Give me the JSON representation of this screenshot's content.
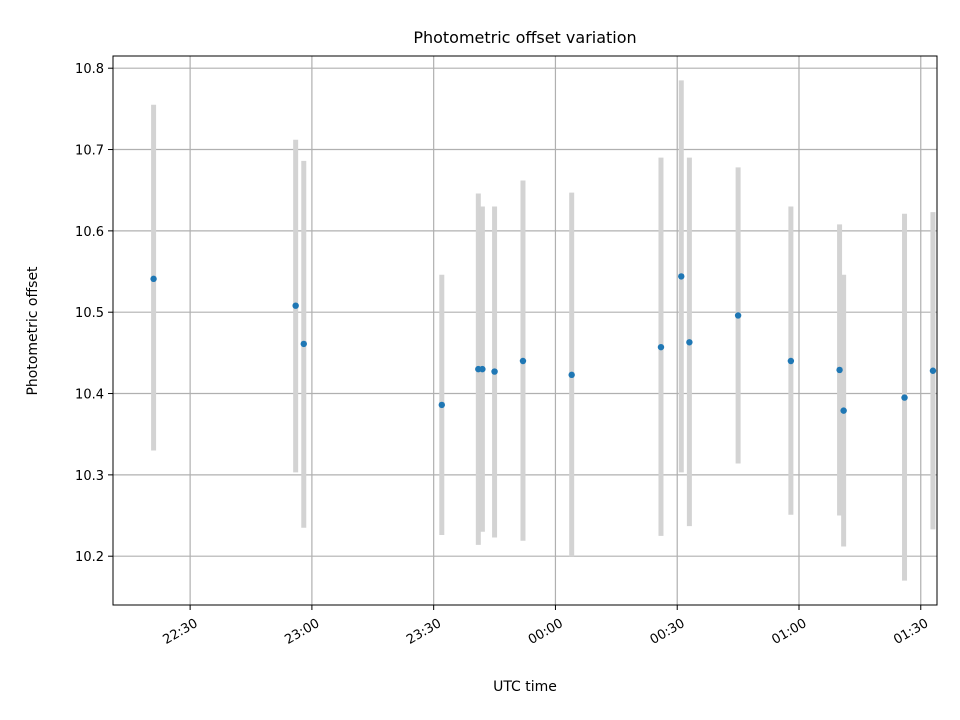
{
  "chart_data": {
    "type": "scatter",
    "title": "Photometric offset variation",
    "xlabel": "UTC time",
    "ylabel": "Photometric offset",
    "x_axis_kind": "time",
    "xlim": [
      "22:11",
      "01:34"
    ],
    "ylim": [
      10.14,
      10.815
    ],
    "x_ticks": [
      "22:30",
      "23:00",
      "23:30",
      "00:00",
      "00:30",
      "01:00",
      "01:30"
    ],
    "y_ticks": [
      10.2,
      10.3,
      10.4,
      10.5,
      10.6,
      10.7,
      10.8
    ],
    "grid": true,
    "marker_color": "#1f77b4",
    "errorbar_color": "#d3d3d3",
    "points": [
      {
        "time": "22:21",
        "y": 10.541,
        "y_low": 10.33,
        "y_high": 10.755
      },
      {
        "time": "22:56",
        "y": 10.508,
        "y_low": 10.303,
        "y_high": 10.712
      },
      {
        "time": "22:58",
        "y": 10.461,
        "y_low": 10.235,
        "y_high": 10.686
      },
      {
        "time": "23:32",
        "y": 10.386,
        "y_low": 10.226,
        "y_high": 10.546
      },
      {
        "time": "23:41",
        "y": 10.43,
        "y_low": 10.214,
        "y_high": 10.646
      },
      {
        "time": "23:42",
        "y": 10.43,
        "y_low": 10.23,
        "y_high": 10.63
      },
      {
        "time": "23:45",
        "y": 10.427,
        "y_low": 10.223,
        "y_high": 10.63
      },
      {
        "time": "23:52",
        "y": 10.44,
        "y_low": 10.219,
        "y_high": 10.662
      },
      {
        "time": "00:04",
        "y": 10.423,
        "y_low": 10.2,
        "y_high": 10.647
      },
      {
        "time": "00:26",
        "y": 10.457,
        "y_low": 10.225,
        "y_high": 10.69
      },
      {
        "time": "00:31",
        "y": 10.544,
        "y_low": 10.303,
        "y_high": 10.785
      },
      {
        "time": "00:33",
        "y": 10.463,
        "y_low": 10.237,
        "y_high": 10.69
      },
      {
        "time": "00:45",
        "y": 10.496,
        "y_low": 10.314,
        "y_high": 10.678
      },
      {
        "time": "00:58",
        "y": 10.44,
        "y_low": 10.251,
        "y_high": 10.63
      },
      {
        "time": "01:10",
        "y": 10.429,
        "y_low": 10.25,
        "y_high": 10.608
      },
      {
        "time": "01:11",
        "y": 10.379,
        "y_low": 10.212,
        "y_high": 10.546
      },
      {
        "time": "01:26",
        "y": 10.395,
        "y_low": 10.17,
        "y_high": 10.621
      },
      {
        "time": "01:33",
        "y": 10.428,
        "y_low": 10.233,
        "y_high": 10.623
      }
    ]
  }
}
